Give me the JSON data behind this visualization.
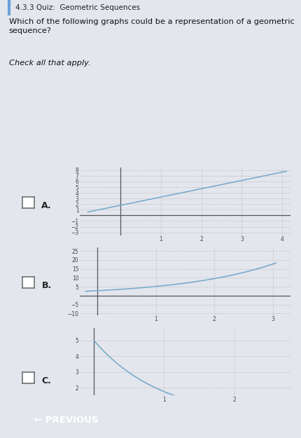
{
  "title_bar_text": "4.3.3 Quiz:  Geometric Sequences",
  "title_bar_bg": "#d0d3dc",
  "title_bar_accent": "#6a9fd8",
  "question": "Which of the following graphs could be a representation of a geometric\nsequence?",
  "check_all": "Check all that apply.",
  "bg_color": "#e4e6ed",
  "panel_bg": "#e4e6ed",
  "graphA": {
    "label": "A.",
    "xlim": [
      -1,
      4.2
    ],
    "ylim": [
      -3.5,
      8.5
    ],
    "xticks": [
      1,
      2,
      3,
      4
    ],
    "yticks": [
      -3,
      -2,
      -1,
      1,
      2,
      3,
      4,
      5,
      6,
      7,
      8
    ],
    "line_x": [
      -0.8,
      4.1
    ],
    "line_y": [
      0.6,
      7.8
    ],
    "line_color": "#7aaccc"
  },
  "graphB": {
    "label": "B.",
    "xlim": [
      -0.3,
      3.3
    ],
    "ylim": [
      -11,
      27
    ],
    "xticks": [
      1,
      2,
      3
    ],
    "yticks": [
      -10,
      -5,
      5,
      10,
      15,
      20,
      25
    ],
    "exp_a": 2.8,
    "exp_b": 1.85,
    "x_start": -0.2,
    "x_end": 3.05,
    "line_color": "#7aaccc"
  },
  "graphC": {
    "label": "C.",
    "xlim": [
      -0.2,
      2.8
    ],
    "ylim": [
      1.5,
      5.8
    ],
    "xticks": [
      1,
      2
    ],
    "yticks": [
      2,
      3,
      4,
      5
    ],
    "x_start": 0.0,
    "x_end": 1.35,
    "line_color": "#7aaccc"
  },
  "checkbox_color": "#ffffff",
  "checkbox_edge": "#666666",
  "grid_color": "#bbbbbb",
  "grid_style": "--",
  "axis_color": "#555555",
  "tick_label_color": "#444444",
  "tick_fontsize": 5.5,
  "previous_btn_color": "#3d6eb4",
  "previous_btn_text": "← PREVIOUS"
}
